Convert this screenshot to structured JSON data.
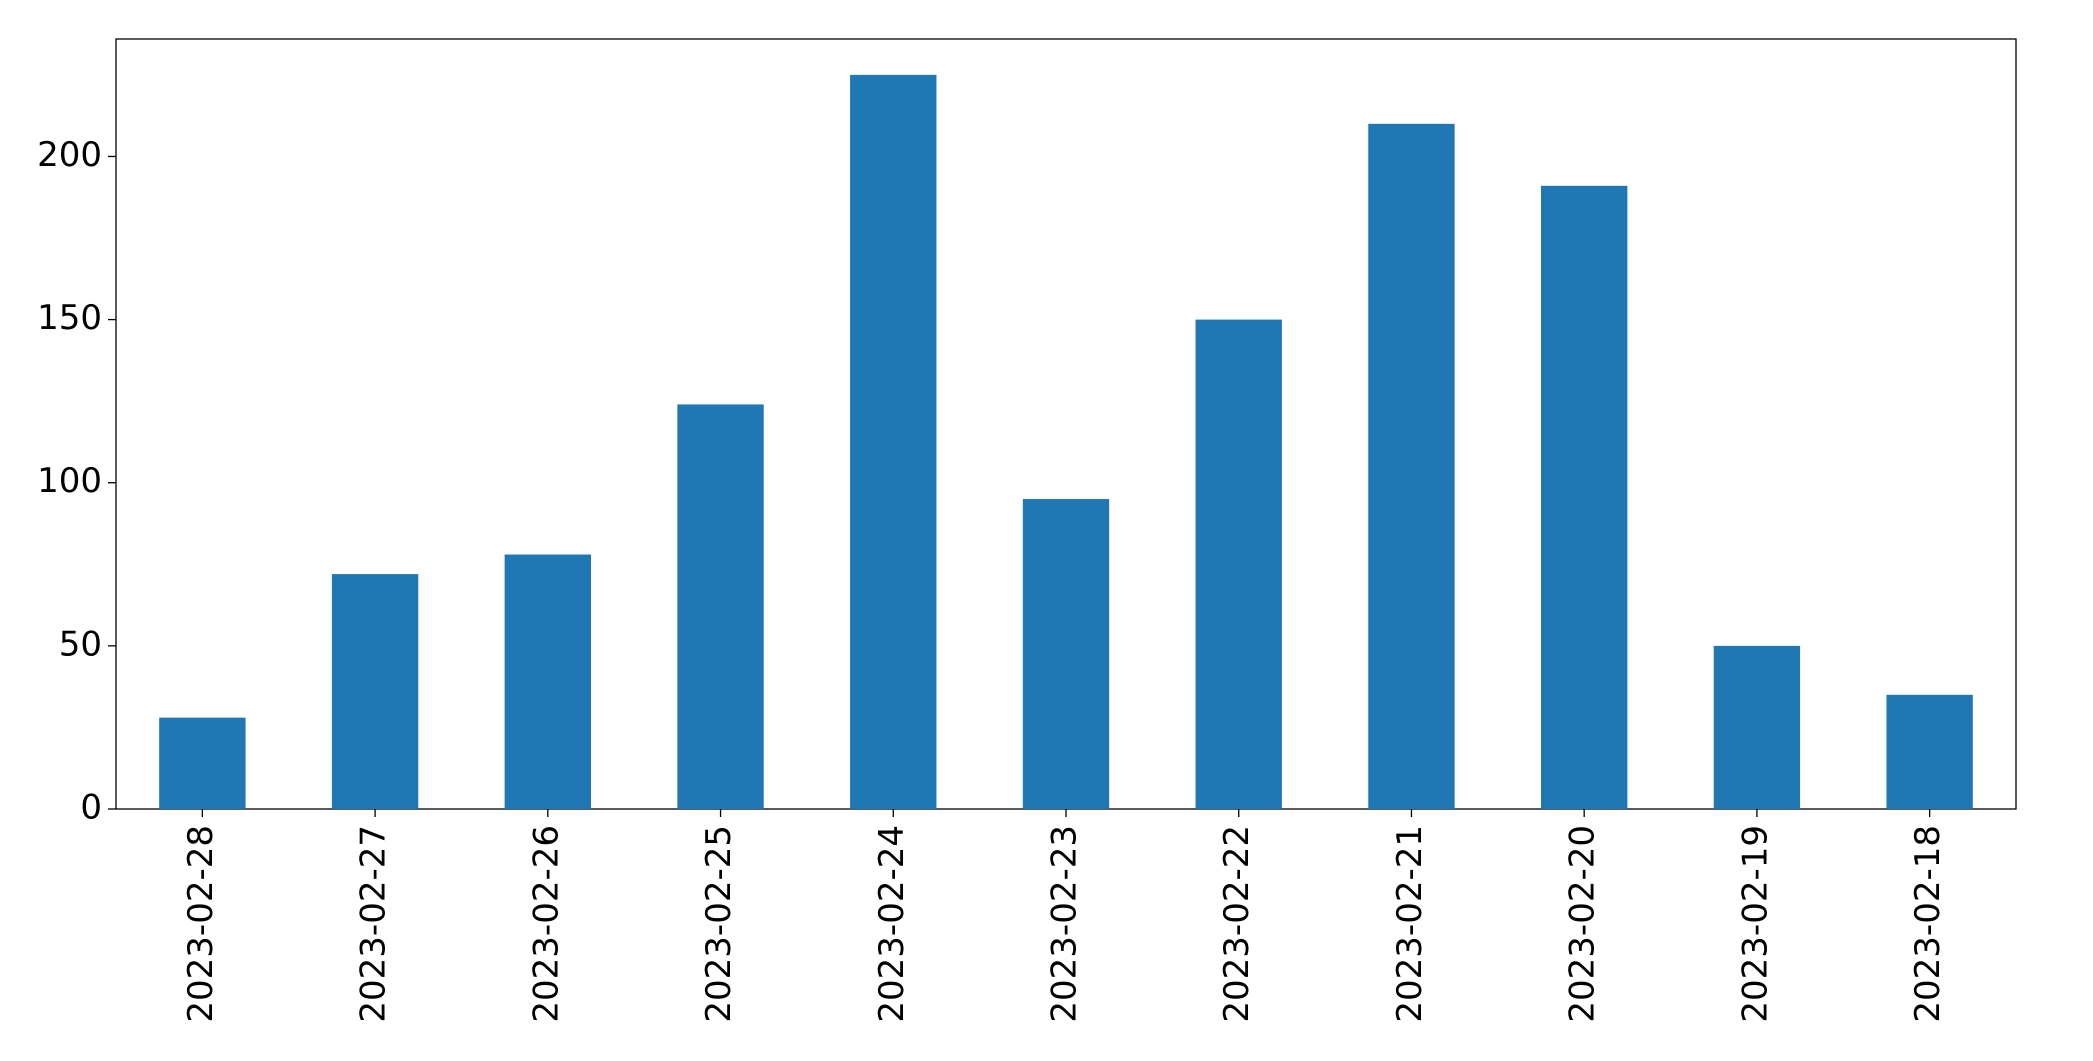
{
  "chart_data": {
    "type": "bar",
    "categories": [
      "2023-02-28",
      "2023-02-27",
      "2023-02-26",
      "2023-02-25",
      "2023-02-24",
      "2023-02-23",
      "2023-02-22",
      "2023-02-21",
      "2023-02-20",
      "2023-02-19",
      "2023-02-18"
    ],
    "values": [
      28,
      72,
      78,
      124,
      225,
      95,
      150,
      210,
      191,
      50,
      35
    ],
    "color": "#1f77b4",
    "ylim": [
      0,
      236
    ],
    "yticks": [
      0,
      50,
      100,
      150,
      200
    ],
    "grid": false
  }
}
